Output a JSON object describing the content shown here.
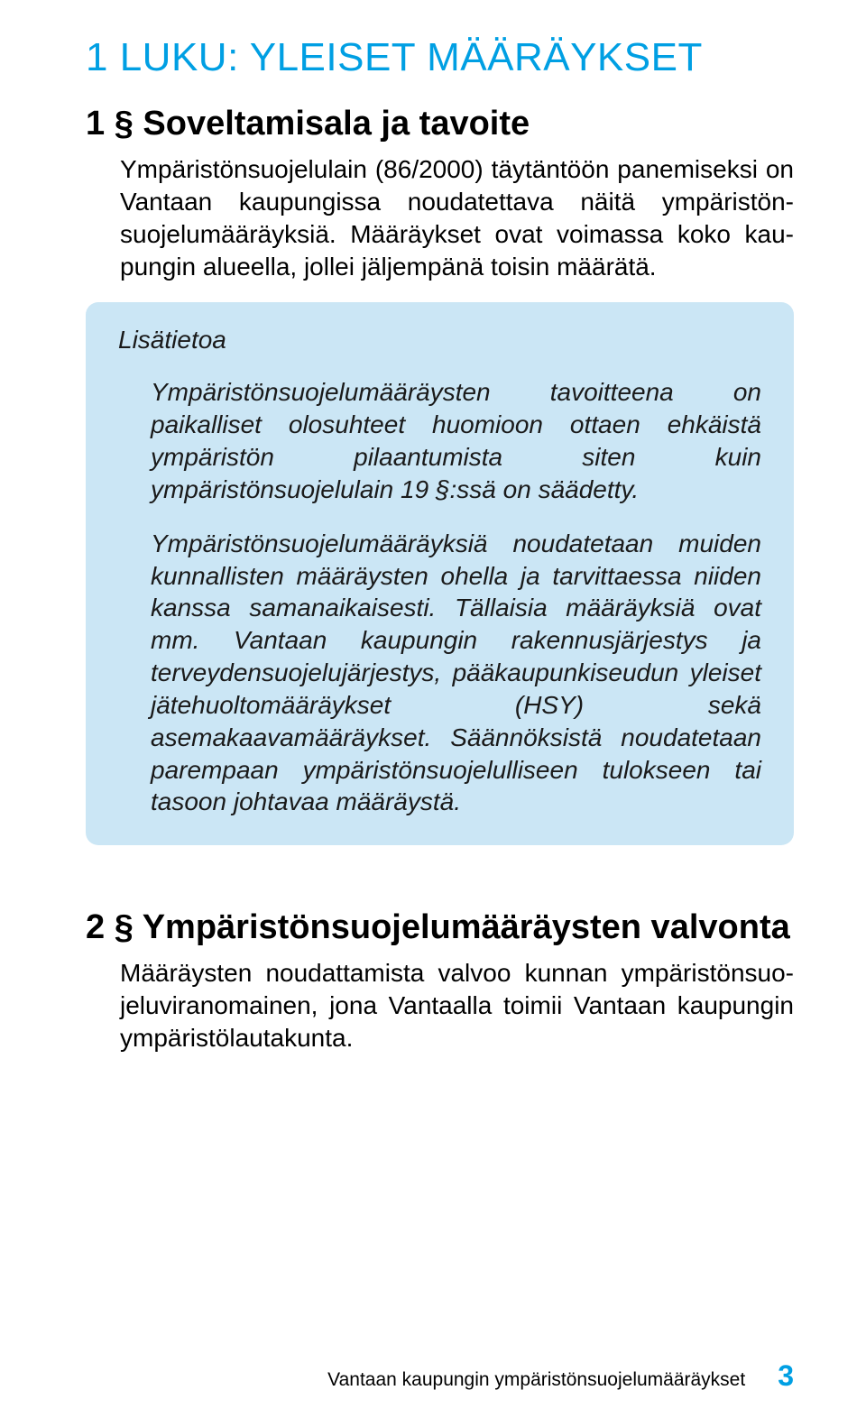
{
  "colors": {
    "accent": "#009fe3",
    "box_bg": "#cbe6f5",
    "text": "#000000"
  },
  "typography": {
    "chapter_title_fontsize": 44,
    "section_title_fontsize": 38,
    "body_fontsize": 28,
    "footer_text_fontsize": 21,
    "footer_page_fontsize": 32
  },
  "chapter": {
    "title": "1 LUKU: YLEISET MÄÄRÄYKSET"
  },
  "section1": {
    "title": "1 § Soveltamisala ja tavoite",
    "body": "Ympäristönsuojelulain (86/2000) täytäntöön panemiseksi on Vantaan kaupungissa noudatettava näitä ympäristön­suojelumääräyksiä. Määräykset ovat voimassa koko kau­pungin alueella, jollei jäljempänä toisin määrätä."
  },
  "infobox": {
    "title": "Lisätietoa",
    "para1": "Ympäristönsuojelumääräysten tavoitteena on paikalliset olosuhteet huomioon ottaen ehkäistä ympäristön pilaan­tumista siten kuin ympäristönsuojelulain 19 §:ssä on sää­detty.",
    "para2": "Ympäristönsuojelumääräyksiä noudatetaan muiden kun­nallisten määräysten ohella ja tarvittaessa niiden kanssa samanaikaisesti. Tällaisia määräyksiä ovat mm. Vantaan kaupungin rakennusjärjestys ja terveydensuojelujärjestys, pääkaupunkiseudun yleiset jätehuoltomääräykset (HSY) sekä asemakaavamääräykset. Säännöksistä noudatetaan parempaan ympäristönsuojelulliseen tulokseen tai tasoon johtavaa määräystä."
  },
  "section2": {
    "title": "2 § Ympäristönsuojelumääräysten valvonta",
    "body": "Määräysten noudattamista valvoo kunnan ympäristönsuo­jeluviranomainen, jona Vantaalla toimii Vantaan kaupungin ympäristölautakunta."
  },
  "footer": {
    "text": "Vantaan kaupungin ympäristönsuojelumääräykset",
    "page": "3"
  }
}
